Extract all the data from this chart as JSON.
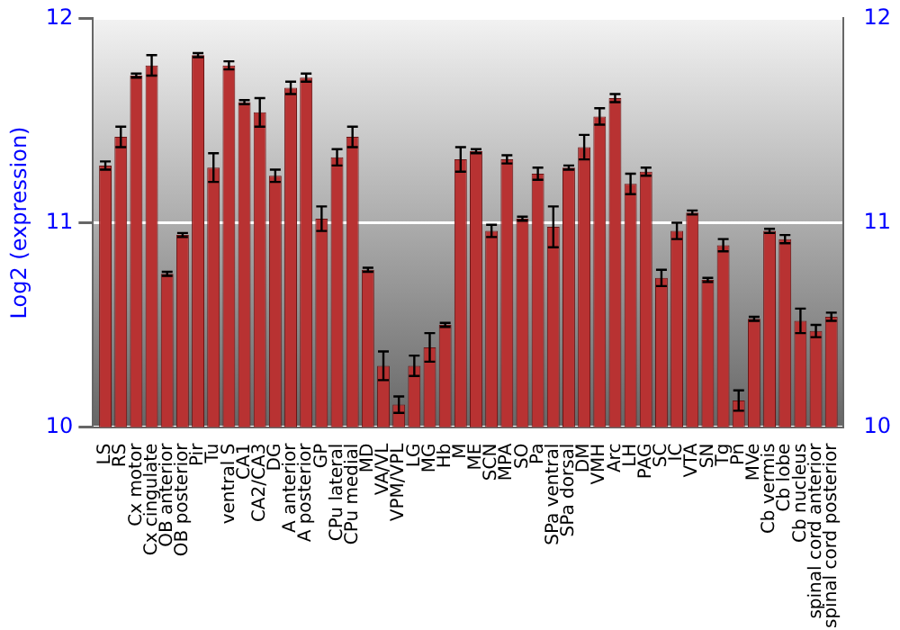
{
  "chart_data": {
    "type": "bar",
    "ylabel": "Log2 (expression)",
    "categories": [
      "LS",
      "RS",
      "Cx motor",
      "Cx cingulate",
      "OB anterior",
      "OB posterior",
      "Pir",
      "Tu",
      "ventral S",
      "CA1",
      "CA2/CA3",
      "DG",
      "A anterior",
      "A posterior",
      "GP",
      "CPu lateral",
      "CPu medial",
      "MD",
      "VA/VL",
      "VPM/VPL",
      "LG",
      "MG",
      "Hb",
      "M",
      "ME",
      "SCN",
      "MPA",
      "SO",
      "Pa",
      "SPa ventral",
      "SPa dorsal",
      "DM",
      "VMH",
      "Arc",
      "LH",
      "PAG",
      "SC",
      "IC",
      "VTA",
      "SN",
      "Tg",
      "Pn",
      "MVe",
      "Cb vermis",
      "Cb lobe",
      "Cb nucleus",
      "spinal cord anterior",
      "spinal cord posterior"
    ],
    "values": [
      11.28,
      11.42,
      11.72,
      11.77,
      10.75,
      10.94,
      11.82,
      11.27,
      11.77,
      11.59,
      11.54,
      11.23,
      11.66,
      11.71,
      11.02,
      11.32,
      11.42,
      10.77,
      10.3,
      10.11,
      10.3,
      10.39,
      10.5,
      11.31,
      11.35,
      10.96,
      11.31,
      11.02,
      11.24,
      10.98,
      11.27,
      11.37,
      11.52,
      11.61,
      11.19,
      11.25,
      10.73,
      10.96,
      11.05,
      10.72,
      10.89,
      10.13,
      10.53,
      10.96,
      10.92,
      10.52,
      10.47,
      10.54
    ],
    "errors": [
      0.02,
      0.05,
      0.01,
      0.05,
      0.01,
      0.01,
      0.01,
      0.07,
      0.02,
      0.01,
      0.07,
      0.03,
      0.03,
      0.02,
      0.06,
      0.04,
      0.05,
      0.01,
      0.07,
      0.04,
      0.05,
      0.07,
      0.01,
      0.06,
      0.01,
      0.03,
      0.02,
      0.01,
      0.03,
      0.1,
      0.01,
      0.06,
      0.04,
      0.02,
      0.05,
      0.02,
      0.04,
      0.04,
      0.01,
      0.01,
      0.03,
      0.05,
      0.01,
      0.01,
      0.02,
      0.06,
      0.03,
      0.02
    ],
    "color": "#b83232",
    "ylim": [
      10,
      12
    ],
    "yticks": [
      10,
      11,
      12
    ],
    "y2lim": [
      10,
      12
    ],
    "y2ticks": [
      10,
      11,
      12
    ],
    "grid": "y",
    "legend": false
  }
}
